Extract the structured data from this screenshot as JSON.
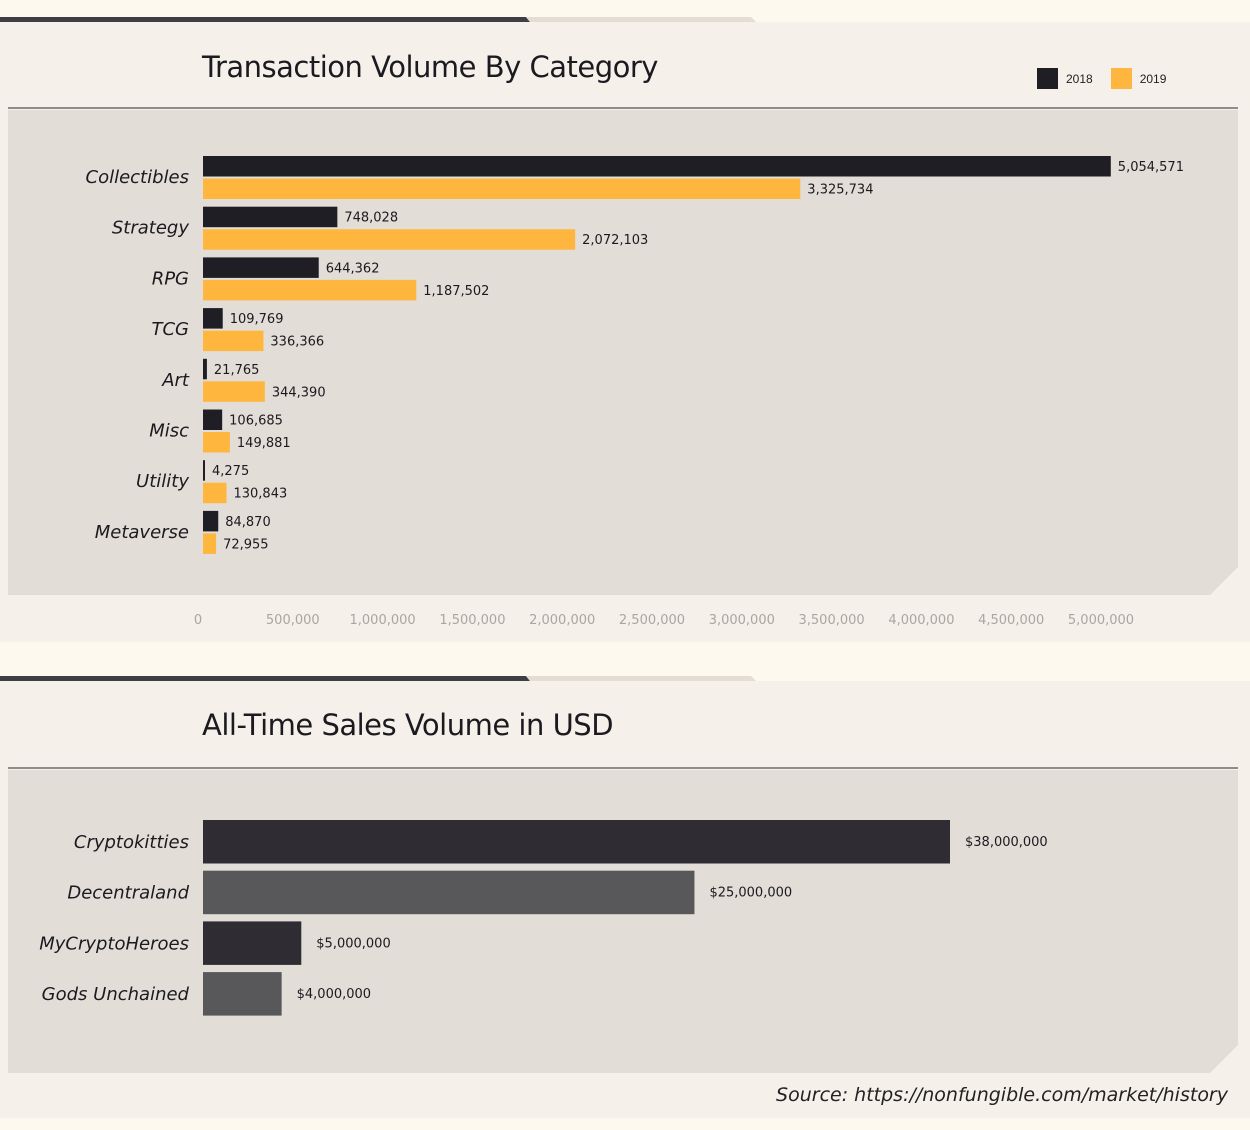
{
  "chart_data": [
    {
      "type": "bar",
      "orientation": "horizontal",
      "title": "Transaction Volume By Category",
      "categories": [
        "Collectibles",
        "Strategy",
        "RPG",
        "TCG",
        "Art",
        "Misc",
        "Utility",
        "Metaverse"
      ],
      "series": [
        {
          "name": "2018",
          "color": "#1f1e25",
          "values": [
            5054571,
            748028,
            644362,
            109769,
            21765,
            106685,
            4275,
            84870
          ],
          "labels": [
            "5,054,571",
            "748,028",
            "644,362",
            "109,769",
            "21,765",
            "106,685",
            "4,275",
            "84,870"
          ]
        },
        {
          "name": "2019",
          "color": "#ffb63f",
          "values": [
            3325734,
            2072103,
            1187502,
            336366,
            344390,
            149881,
            130843,
            72955
          ],
          "labels": [
            "3,325,734",
            "2,072,103",
            "1,187,502",
            "336,366",
            "344,390",
            "149,881",
            "130,843",
            "72,955"
          ]
        }
      ],
      "xlim": [
        0,
        5000000
      ],
      "xticks": [
        "0",
        "500,000",
        "1,000,000",
        "1,500,000",
        "2,000,000",
        "2,500,000",
        "3,000,000",
        "3,500,000",
        "4,000,000",
        "4,500,000",
        "5,000,000"
      ],
      "legend": "top-right",
      "grid": false
    },
    {
      "type": "bar",
      "orientation": "horizontal",
      "title": "All-Time Sales Volume in USD",
      "categories": [
        "Cryptokitties",
        "Decentraland",
        "MyCryptoHeroes",
        "Gods Unchained"
      ],
      "values": [
        38000000,
        25000000,
        5000000,
        4000000
      ],
      "labels": [
        "$38,000,000",
        "$25,000,000",
        "$5,000,000",
        "$4,000,000"
      ],
      "colors": [
        "#2f2d33",
        "#58575a",
        "#2f2d33",
        "#58575a"
      ],
      "grid": false
    }
  ],
  "source": "Source: https://nonfungible.com/market/history"
}
